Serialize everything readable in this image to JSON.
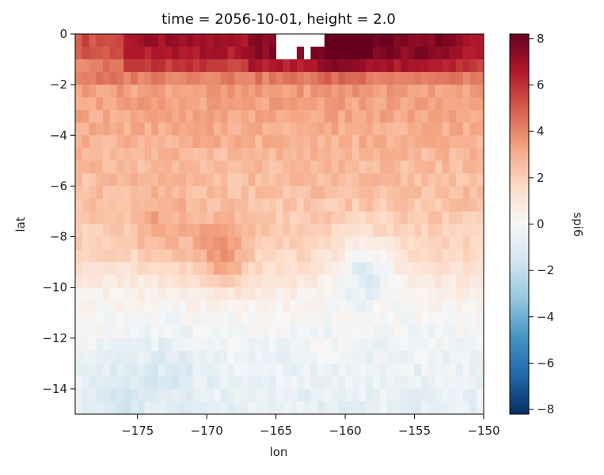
{
  "chart_data": {
    "type": "heatmap",
    "title": "time = 2056-10-01, height = 2.0",
    "xlabel": "lon",
    "ylabel": "lat",
    "colorbar_label": "spi6",
    "colormap": "RdBu_r",
    "xlim": [
      -179.5,
      -150.0
    ],
    "ylim": [
      -15.0,
      0.0
    ],
    "clim": [
      -8.2,
      8.2
    ],
    "x_ticks": [
      -175,
      -170,
      -165,
      -160,
      -155,
      -150
    ],
    "x_tick_labels": [
      "−175",
      "−170",
      "−165",
      "−160",
      "−155",
      "−150"
    ],
    "y_ticks": [
      0,
      -2,
      -4,
      -6,
      -8,
      -10,
      -12,
      -14
    ],
    "y_tick_labels": [
      "0",
      "−2",
      "−4",
      "−6",
      "−8",
      "−10",
      "−12",
      "−14"
    ],
    "colorbar_ticks": [
      8,
      6,
      4,
      2,
      0,
      -2,
      -4,
      -6,
      -8
    ],
    "colorbar_tick_labels": [
      "8",
      "6",
      "4",
      "2",
      "0",
      "−2",
      "−4",
      "−6",
      "−8"
    ],
    "grid_resolution_deg": 0.5,
    "missing_regions": [
      {
        "lon_range": [
          -165.0,
          -163.5
        ],
        "lat_range": [
          -1.0,
          0.0
        ]
      },
      {
        "lon_range": [
          -163.5,
          -161.5
        ],
        "lat_range": [
          -0.5,
          0.0
        ]
      },
      {
        "lon_range": [
          -163.0,
          -162.5
        ],
        "lat_range": [
          -1.0,
          -0.5
        ]
      }
    ],
    "field_samples": {
      "lat": [
        0.0,
        -1.0,
        -2.0,
        -3.0,
        -4.0,
        -5.0,
        -6.0,
        -7.0,
        -8.0,
        -9.0,
        -10.0,
        -11.0,
        -12.0,
        -13.0,
        -14.0,
        -15.0
      ],
      "spi6_mean": [
        7.0,
        6.5,
        3.5,
        3.2,
        3.0,
        2.6,
        2.5,
        2.3,
        2.0,
        1.5,
        0.6,
        0.1,
        -0.2,
        -0.5,
        -0.6,
        -0.7
      ]
    },
    "notable_features": [
      {
        "description": "peak band",
        "lon": -160,
        "lat": -0.5,
        "value": 8.0
      },
      {
        "description": "local high",
        "lon": -169,
        "lat": -8.7,
        "value": 3.6
      },
      {
        "description": "local high",
        "lon": -173.5,
        "lat": -7.5,
        "value": 3.2
      },
      {
        "description": "local low",
        "lon": -158.5,
        "lat": -9.2,
        "value": -0.8
      },
      {
        "description": "local low",
        "lon": -176.5,
        "lat": -14.5,
        "value": -1.5
      },
      {
        "description": "local low",
        "lon": -172.5,
        "lat": -13.2,
        "value": -1.3
      }
    ]
  }
}
